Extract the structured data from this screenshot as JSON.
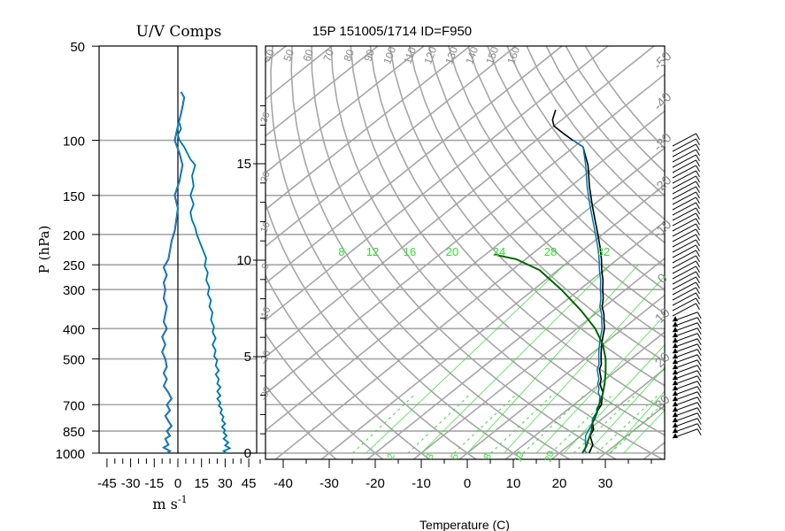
{
  "figure": {
    "main_title": "15P 151005/1714 ID=F950",
    "colors": {
      "grid": "#a6a6a6",
      "axis": "#000000",
      "mixing_ratio": "#33dd33",
      "temperature": "#000000",
      "temperature_hi": "#00b5b5",
      "dewpoint_fill": "#1f3fb0",
      "parcel": "#006400",
      "u_comp": "#1f3fb0",
      "v_comp": "#00b5b5"
    }
  },
  "chart_data": [
    {
      "type": "line",
      "title": "U/V Comps",
      "xlabel": "m s",
      "xlabel_exp": "-1",
      "ylabel": "P (hPa)",
      "xlim": [
        -50,
        50
      ],
      "x_ticks": [
        "-45",
        "-30",
        "-15",
        "0",
        "15",
        "30",
        "45"
      ],
      "p_ticks": [
        "50",
        "100",
        "150",
        "200",
        "250",
        "300",
        "400",
        "500",
        "700",
        "850",
        "1000"
      ],
      "x_line": 0,
      "series": [
        {
          "color": "#1f3fb0",
          "points": [
            [
              -7,
              1000
            ],
            [
              -5,
              985
            ],
            [
              -9,
              960
            ],
            [
              -6,
              940
            ],
            [
              -8,
              900
            ],
            [
              -5,
              880
            ],
            [
              -7,
              850
            ],
            [
              -4,
              820
            ],
            [
              -6,
              790
            ],
            [
              -8,
              760
            ],
            [
              -5,
              730
            ],
            [
              -7,
              700
            ],
            [
              -4,
              670
            ],
            [
              -6,
              640
            ],
            [
              -9,
              610
            ],
            [
              -7,
              580
            ],
            [
              -9,
              555
            ],
            [
              -7,
              530
            ],
            [
              -8,
              500
            ],
            [
              -10,
              475
            ],
            [
              -8,
              450
            ],
            [
              -10,
              425
            ],
            [
              -7,
              400
            ],
            [
              -9,
              380
            ],
            [
              -8,
              360
            ],
            [
              -7,
              340
            ],
            [
              -9,
              320
            ],
            [
              -8,
              300
            ],
            [
              -9,
              285
            ],
            [
              -7,
              270
            ],
            [
              -9,
              255
            ],
            [
              -6,
              240
            ],
            [
              -5,
              225
            ],
            [
              -4,
              210
            ],
            [
              -2,
              195
            ],
            [
              -1,
              180
            ],
            [
              0,
              165
            ],
            [
              -2,
              150
            ],
            [
              1,
              135
            ],
            [
              3,
              120
            ],
            [
              1,
              110
            ],
            [
              -2,
              100
            ],
            [
              -1,
              95
            ],
            [
              0,
              90
            ],
            [
              2,
              82
            ],
            [
              3,
              78
            ],
            [
              4,
              73
            ],
            [
              2,
              70
            ]
          ]
        },
        {
          "color": "#00b5b5",
          "points": [
            [
              31,
              1000
            ],
            [
              29,
              985
            ],
            [
              33,
              965
            ],
            [
              30,
              945
            ],
            [
              32,
              925
            ],
            [
              29,
              900
            ],
            [
              31,
              880
            ],
            [
              29,
              860
            ],
            [
              30,
              845
            ],
            [
              28,
              825
            ],
            [
              30,
              805
            ],
            [
              28,
              785
            ],
            [
              29,
              765
            ],
            [
              27,
              745
            ],
            [
              28,
              725
            ],
            [
              26,
              705
            ],
            [
              27,
              690
            ],
            [
              25,
              670
            ],
            [
              27,
              655
            ],
            [
              25,
              635
            ],
            [
              27,
              615
            ],
            [
              25,
              600
            ],
            [
              26,
              580
            ],
            [
              24,
              560
            ],
            [
              26,
              545
            ],
            [
              24,
              525
            ],
            [
              25,
              505
            ],
            [
              23,
              490
            ],
            [
              24,
              470
            ],
            [
              22,
              450
            ],
            [
              24,
              430
            ],
            [
              22,
              410
            ],
            [
              23,
              395
            ],
            [
              21,
              375
            ],
            [
              22,
              355
            ],
            [
              20,
              340
            ],
            [
              21,
              325
            ],
            [
              19,
              310
            ],
            [
              20,
              295
            ],
            [
              18,
              280
            ],
            [
              19,
              265
            ],
            [
              17,
              252
            ],
            [
              18,
              238
            ],
            [
              16,
              225
            ],
            [
              14,
              212
            ],
            [
              12,
              200
            ],
            [
              11,
              190
            ],
            [
              9,
              180
            ],
            [
              8,
              170
            ],
            [
              10,
              160
            ],
            [
              8,
              150
            ],
            [
              10,
              140
            ],
            [
              9,
              130
            ],
            [
              11,
              120
            ],
            [
              8,
              115
            ],
            [
              6,
              110
            ],
            [
              4,
              105
            ],
            [
              1,
              100
            ],
            [
              0,
              96
            ],
            [
              2,
              92
            ],
            [
              1,
              88
            ]
          ]
        }
      ]
    },
    {
      "type": "line",
      "xlabel": "Temperature (C)",
      "xlim": [
        -45,
        45
      ],
      "x_ticks": [
        "-40",
        "-30",
        "-20",
        "-10",
        "0",
        "10",
        "20",
        "30"
      ],
      "height_ticks": [
        "0",
        "5",
        "10",
        "15"
      ],
      "mixing_ratio_labels": [
        "8",
        "12",
        "16",
        "20",
        "24",
        "28",
        "32"
      ],
      "mixing_ratio_bottom_labels": [
        "2",
        "3",
        "5",
        "8",
        "12",
        "20"
      ],
      "theta_labels": [
        "40",
        "50",
        "60",
        "70",
        "80",
        "90",
        "100",
        "110",
        "120",
        "130",
        "140",
        "150",
        "160"
      ],
      "theta_left_labels": [
        "30",
        "20",
        "10",
        "0",
        "-10",
        "-20",
        "-30"
      ],
      "isotherm_right_labels": [
        "-50",
        "-40",
        "-30",
        "-20",
        "-10",
        "0",
        "10",
        "20",
        "30"
      ],
      "series": [
        {
          "color": "#000000",
          "points": [
            [
              26.5,
              1000
            ],
            [
              26.0,
              980
            ],
            [
              25.5,
              960
            ],
            [
              25.0,
              940
            ],
            [
              24.0,
              920
            ],
            [
              23.0,
              900
            ],
            [
              22.0,
              880
            ],
            [
              21.5,
              860
            ],
            [
              21.0,
              840
            ],
            [
              20.0,
              820
            ],
            [
              19.0,
              800
            ],
            [
              18.0,
              780
            ],
            [
              17.5,
              760
            ],
            [
              17.0,
              740
            ],
            [
              16.5,
              720
            ],
            [
              16.0,
              700
            ],
            [
              15.0,
              680
            ],
            [
              14.0,
              660
            ],
            [
              13.0,
              640
            ],
            [
              11.5,
              620
            ],
            [
              10.0,
              600
            ],
            [
              9.0,
              580
            ],
            [
              7.5,
              560
            ],
            [
              6.0,
              540
            ],
            [
              5.0,
              520
            ],
            [
              3.5,
              500
            ],
            [
              2.0,
              480
            ],
            [
              0.5,
              460
            ],
            [
              -1.0,
              440
            ],
            [
              -2.5,
              420
            ],
            [
              -4.0,
              400
            ],
            [
              -6.0,
              380
            ],
            [
              -8.0,
              360
            ],
            [
              -10.5,
              340
            ],
            [
              -12.5,
              320
            ],
            [
              -15.0,
              300
            ],
            [
              -17.5,
              280
            ],
            [
              -20.5,
              260
            ],
            [
              -23.5,
              240
            ],
            [
              -27.0,
              220
            ],
            [
              -31.0,
              200
            ],
            [
              -35.5,
              180
            ],
            [
              -40.5,
              160
            ],
            [
              -46.0,
              140
            ],
            [
              -52.0,
              120
            ],
            [
              -58.0,
              105
            ],
            [
              -62.0,
              100
            ],
            [
              -66.0,
              95
            ],
            [
              -70.0,
              90
            ],
            [
              -72.0,
              86
            ],
            [
              -73.0,
              83
            ],
            [
              -74.0,
              80
            ]
          ]
        },
        {
          "color": "#00b5b5",
          "points": [
            [
              26.0,
              1000
            ],
            [
              25.0,
              985
            ],
            [
              24.5,
              970
            ],
            [
              24.0,
              955
            ],
            [
              23.0,
              930
            ],
            [
              22.0,
              905
            ],
            [
              21.0,
              880
            ],
            [
              20.5,
              860
            ],
            [
              20.0,
              840
            ],
            [
              19.5,
              820
            ],
            [
              19.0,
              800
            ],
            [
              18.0,
              780
            ],
            [
              17.5,
              760
            ],
            [
              17.0,
              740
            ],
            [
              16.0,
              720
            ],
            [
              15.5,
              700
            ],
            [
              14.5,
              680
            ],
            [
              13.5,
              660
            ],
            [
              12.0,
              640
            ],
            [
              11.0,
              620
            ],
            [
              9.5,
              600
            ],
            [
              8.5,
              580
            ],
            [
              7.0,
              560
            ],
            [
              5.5,
              540
            ],
            [
              4.5,
              520
            ],
            [
              3.0,
              500
            ],
            [
              1.5,
              480
            ],
            [
              0.0,
              460
            ],
            [
              -1.5,
              440
            ],
            [
              -3.0,
              420
            ],
            [
              -4.5,
              400
            ],
            [
              -6.5,
              380
            ],
            [
              -8.5,
              360
            ],
            [
              -11.0,
              340
            ],
            [
              -13.0,
              320
            ],
            [
              -15.5,
              300
            ],
            [
              -18.0,
              280
            ],
            [
              -21.0,
              260
            ],
            [
              -24.0,
              240
            ],
            [
              -27.5,
              220
            ],
            [
              -31.5,
              200
            ],
            [
              -36.0,
              180
            ],
            [
              -41.0,
              160
            ],
            [
              -46.5,
              140
            ],
            [
              -52.5,
              120
            ],
            [
              -58.0,
              105
            ],
            [
              -62.0,
              100
            ]
          ]
        },
        {
          "color": "#006400",
          "points": [
            [
              25.0,
              1000
            ],
            [
              24.0,
              950
            ],
            [
              22.5,
              900
            ],
            [
              21.0,
              850
            ],
            [
              19.0,
              800
            ],
            [
              17.5,
              750
            ],
            [
              15.5,
              700
            ],
            [
              13.5,
              650
            ],
            [
              11.0,
              600
            ],
            [
              8.0,
              550
            ],
            [
              4.5,
              500
            ],
            [
              0.0,
              450
            ],
            [
              -6.0,
              400
            ],
            [
              -14.0,
              350
            ],
            [
              -24.0,
              300
            ],
            [
              -34.0,
              260
            ],
            [
              -42.0,
              240
            ],
            [
              -48.0,
              232
            ]
          ]
        }
      ]
    }
  ]
}
